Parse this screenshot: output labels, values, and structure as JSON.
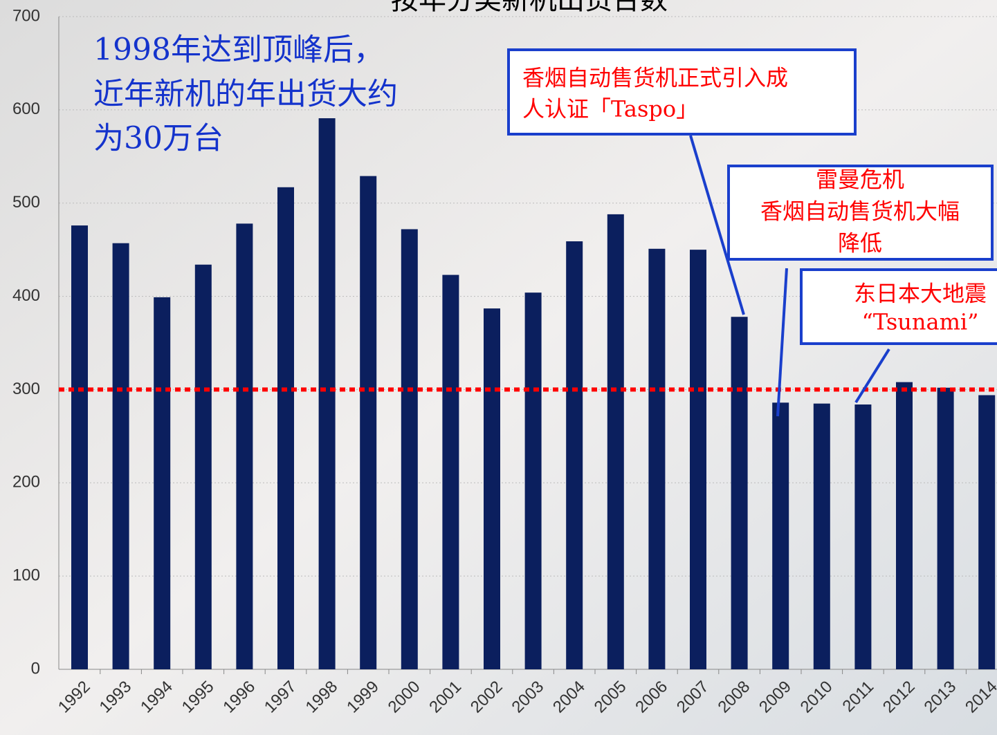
{
  "chart_data": {
    "type": "bar",
    "title": "按年分类新机出货台数",
    "categories": [
      "1992",
      "1993",
      "1994",
      "1995",
      "1996",
      "1997",
      "1998",
      "1999",
      "2000",
      "2001",
      "2002",
      "2003",
      "2004",
      "2005",
      "2006",
      "2007",
      "2008",
      "2009",
      "2010",
      "2011",
      "2012",
      "2013",
      "2014"
    ],
    "values": [
      476,
      457,
      399,
      434,
      478,
      517,
      591,
      529,
      472,
      423,
      387,
      404,
      459,
      488,
      451,
      450,
      378,
      286,
      285,
      284,
      308,
      302,
      294
    ],
    "color": "#0b1f5e",
    "ylim": [
      0,
      700
    ],
    "yticks": [
      0,
      100,
      200,
      300,
      400,
      500,
      600,
      700
    ],
    "grid": true,
    "reference_line": {
      "value": 300,
      "color": "#ff0000"
    },
    "annotations": [
      {
        "lines": [
          "1998年达到顶峰后，",
          "近年新机的年出货大约",
          "为30万台"
        ],
        "color": "#1433cc"
      },
      {
        "lines": [
          "香烟自动售货机正式引入成",
          "人认证「Taspo」"
        ],
        "color": "#ff0000"
      },
      {
        "lines": [
          "雷曼危机",
          "香烟自动售货机大幅",
          "降低"
        ],
        "color": "#ff0000"
      },
      {
        "lines": [
          "东日本大地震",
          "“Tsunami”"
        ],
        "color": "#ff0000"
      }
    ]
  }
}
